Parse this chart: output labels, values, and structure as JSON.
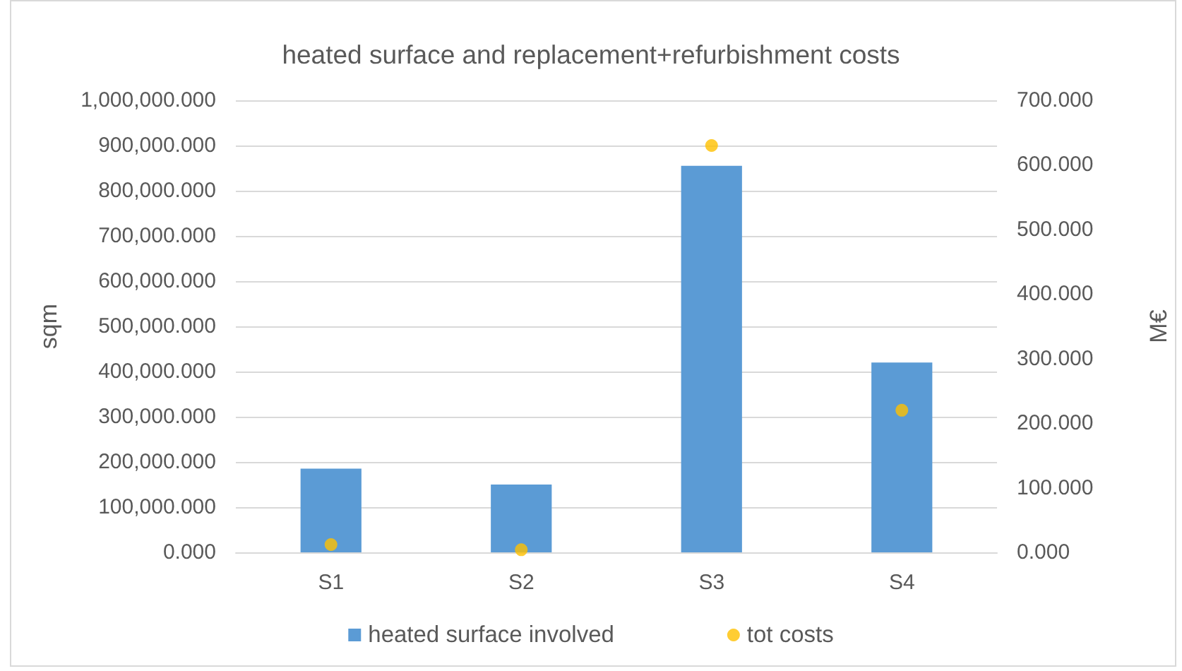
{
  "chart_data": {
    "type": "bar",
    "title": "heated surface and replacement+refurbishment costs",
    "ylabel": "sqm",
    "y2label": "M€",
    "categories": [
      "S1",
      "S2",
      "S3",
      "S4"
    ],
    "series": [
      {
        "name": "heated surface involved",
        "color": "#5b9bd5",
        "values": [
          185000,
          150000,
          855000,
          420000
        ]
      },
      {
        "name": "tot costs",
        "type": "scatter",
        "axis": "y2",
        "color": "#ffc000",
        "values": [
          12,
          4,
          630,
          220
        ]
      }
    ],
    "ylim": [
      0,
      1000000
    ],
    "yticks": [
      {
        "value": 0,
        "label": "0.000"
      },
      {
        "value": 100000,
        "label": "100,000.000"
      },
      {
        "value": 200000,
        "label": "200,000.000"
      },
      {
        "value": 300000,
        "label": "300,000.000"
      },
      {
        "value": 400000,
        "label": "400,000.000"
      },
      {
        "value": 500000,
        "label": "500,000.000"
      },
      {
        "value": 600000,
        "label": "600,000.000"
      },
      {
        "value": 700000,
        "label": "700,000.000"
      },
      {
        "value": 800000,
        "label": "800,000.000"
      },
      {
        "value": 900000,
        "label": "900,000.000"
      },
      {
        "value": 1000000,
        "label": "1,000,000.000"
      }
    ],
    "y2lim": [
      0,
      700
    ],
    "y2ticks": [
      {
        "value": 0,
        "label": "0.000"
      },
      {
        "value": 100,
        "label": "100.000"
      },
      {
        "value": 200,
        "label": "200.000"
      },
      {
        "value": 300,
        "label": "300.000"
      },
      {
        "value": 400,
        "label": "400.000"
      },
      {
        "value": 500,
        "label": "500.000"
      },
      {
        "value": 600,
        "label": "600.000"
      },
      {
        "value": 700,
        "label": "700.000"
      }
    ],
    "grid": "y",
    "legend": "bottom",
    "marker": "circle"
  }
}
